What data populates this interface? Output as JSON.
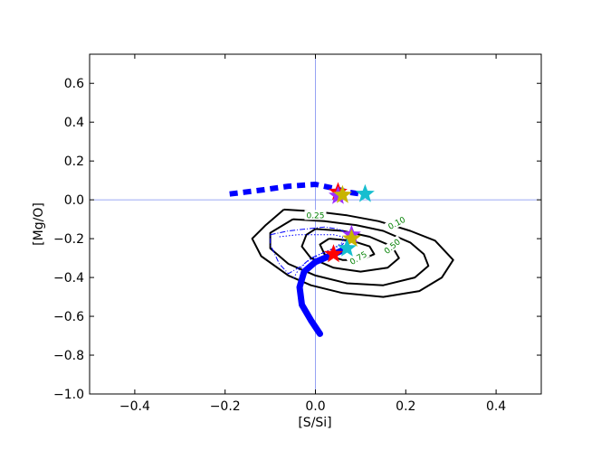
{
  "chart_data": {
    "type": "scatter",
    "xlabel": "[S/Si]",
    "ylabel": "[Mg/O]",
    "xlim": [
      -0.5,
      0.5
    ],
    "ylim": [
      -1.0,
      0.75
    ],
    "xticks": [
      -0.4,
      -0.2,
      0.0,
      0.2,
      0.4
    ],
    "yticks": [
      -1.0,
      -0.8,
      -0.6,
      -0.4,
      -0.2,
      0.0,
      0.2,
      0.4,
      0.6
    ],
    "xtick_labels": [
      "−0.4",
      "−0.2",
      "0.0",
      "0.2",
      "0.4"
    ],
    "ytick_labels": [
      "−1.0",
      "−0.8",
      "−0.6",
      "−0.4",
      "−0.2",
      "0.0",
      "0.2",
      "0.4",
      "0.6"
    ],
    "reference_lines": {
      "x": 0.0,
      "y": 0.0,
      "color": "#7b8cf0"
    },
    "colors": {
      "contour": "#000000",
      "contour_label": "#008000",
      "track": "#0000ff"
    },
    "contours": [
      {
        "label": "0.10",
        "points": [
          [
            -0.07,
            -0.05
          ],
          [
            0.0,
            -0.06
          ],
          [
            0.07,
            -0.08
          ],
          [
            0.14,
            -0.11
          ],
          [
            0.21,
            -0.16
          ],
          [
            0.265,
            -0.21
          ],
          [
            0.305,
            -0.31
          ],
          [
            0.28,
            -0.4
          ],
          [
            0.23,
            -0.47
          ],
          [
            0.15,
            -0.5
          ],
          [
            0.06,
            -0.48
          ],
          [
            -0.01,
            -0.44
          ],
          [
            -0.06,
            -0.39
          ],
          [
            -0.12,
            -0.29
          ],
          [
            -0.14,
            -0.2
          ],
          [
            -0.11,
            -0.13
          ],
          [
            -0.07,
            -0.05
          ]
        ]
      },
      {
        "label": "0.25",
        "points": [
          [
            -0.05,
            -0.1
          ],
          [
            0.02,
            -0.11
          ],
          [
            0.09,
            -0.13
          ],
          [
            0.15,
            -0.16
          ],
          [
            0.21,
            -0.22
          ],
          [
            0.24,
            -0.28
          ],
          [
            0.25,
            -0.34
          ],
          [
            0.22,
            -0.4
          ],
          [
            0.15,
            -0.44
          ],
          [
            0.07,
            -0.43
          ],
          [
            0.0,
            -0.39
          ],
          [
            -0.06,
            -0.33
          ],
          [
            -0.1,
            -0.25
          ],
          [
            -0.1,
            -0.17
          ],
          [
            -0.05,
            -0.1
          ]
        ]
      },
      {
        "label": "0.50",
        "points": [
          [
            0.0,
            -0.15
          ],
          [
            0.06,
            -0.16
          ],
          [
            0.12,
            -0.19
          ],
          [
            0.17,
            -0.24
          ],
          [
            0.185,
            -0.3
          ],
          [
            0.16,
            -0.35
          ],
          [
            0.1,
            -0.37
          ],
          [
            0.04,
            -0.35
          ],
          [
            -0.01,
            -0.3
          ],
          [
            -0.03,
            -0.24
          ],
          [
            -0.02,
            -0.18
          ],
          [
            0.0,
            -0.15
          ]
        ]
      },
      {
        "label": "0.75",
        "points": [
          [
            0.03,
            -0.2
          ],
          [
            0.08,
            -0.21
          ],
          [
            0.12,
            -0.24
          ],
          [
            0.13,
            -0.28
          ],
          [
            0.1,
            -0.31
          ],
          [
            0.06,
            -0.31
          ],
          [
            0.02,
            -0.28
          ],
          [
            0.01,
            -0.23
          ],
          [
            0.03,
            -0.2
          ]
        ]
      }
    ],
    "tracks": [
      {
        "style": "dashed-thick",
        "points": [
          [
            -0.19,
            0.03
          ],
          [
            -0.12,
            0.05
          ],
          [
            -0.06,
            0.07
          ],
          [
            0.0,
            0.08
          ],
          [
            0.04,
            0.06
          ],
          [
            0.07,
            0.04
          ],
          [
            0.1,
            0.03
          ]
        ]
      },
      {
        "style": "solid-thick",
        "points": [
          [
            0.01,
            -0.69
          ],
          [
            -0.01,
            -0.62
          ],
          [
            -0.03,
            -0.54
          ],
          [
            -0.035,
            -0.45
          ],
          [
            -0.025,
            -0.37
          ],
          [
            0.0,
            -0.32
          ],
          [
            0.03,
            -0.29
          ],
          [
            0.06,
            -0.26
          ]
        ]
      },
      {
        "style": "dashdot",
        "points": [
          [
            -0.1,
            -0.18
          ],
          [
            -0.06,
            -0.16
          ],
          [
            -0.02,
            -0.15
          ],
          [
            0.02,
            -0.14
          ],
          [
            0.05,
            -0.15
          ],
          [
            0.07,
            -0.17
          ],
          [
            0.07,
            -0.2
          ],
          [
            0.06,
            -0.23
          ],
          [
            0.04,
            -0.25
          ],
          [
            0.02,
            -0.27
          ],
          [
            -0.01,
            -0.3
          ],
          [
            -0.03,
            -0.34
          ],
          [
            -0.06,
            -0.38
          ],
          [
            -0.08,
            -0.33
          ],
          [
            -0.1,
            -0.23
          ],
          [
            -0.1,
            -0.18
          ]
        ]
      },
      {
        "style": "dotted",
        "points": [
          [
            -0.08,
            -0.19
          ],
          [
            -0.04,
            -0.18
          ],
          [
            0.0,
            -0.18
          ],
          [
            0.04,
            -0.18
          ],
          [
            0.06,
            -0.19
          ],
          [
            0.06,
            -0.22
          ],
          [
            0.04,
            -0.25
          ],
          [
            0.01,
            -0.28
          ],
          [
            -0.02,
            -0.32
          ],
          [
            -0.04,
            -0.37
          ],
          [
            -0.05,
            -0.41
          ]
        ]
      }
    ],
    "points": [
      {
        "x": 0.05,
        "y": 0.04,
        "color": "#ff0000"
      },
      {
        "x": 0.05,
        "y": 0.02,
        "color": "#9b30ff"
      },
      {
        "x": 0.06,
        "y": 0.025,
        "color": "#c8b400"
      },
      {
        "x": 0.11,
        "y": 0.03,
        "color": "#17becf"
      },
      {
        "x": 0.08,
        "y": -0.18,
        "color": "#9b30ff"
      },
      {
        "x": 0.08,
        "y": -0.2,
        "color": "#c8b400"
      },
      {
        "x": 0.07,
        "y": -0.25,
        "color": "#17becf"
      },
      {
        "x": 0.04,
        "y": -0.28,
        "color": "#ff0000"
      }
    ]
  }
}
